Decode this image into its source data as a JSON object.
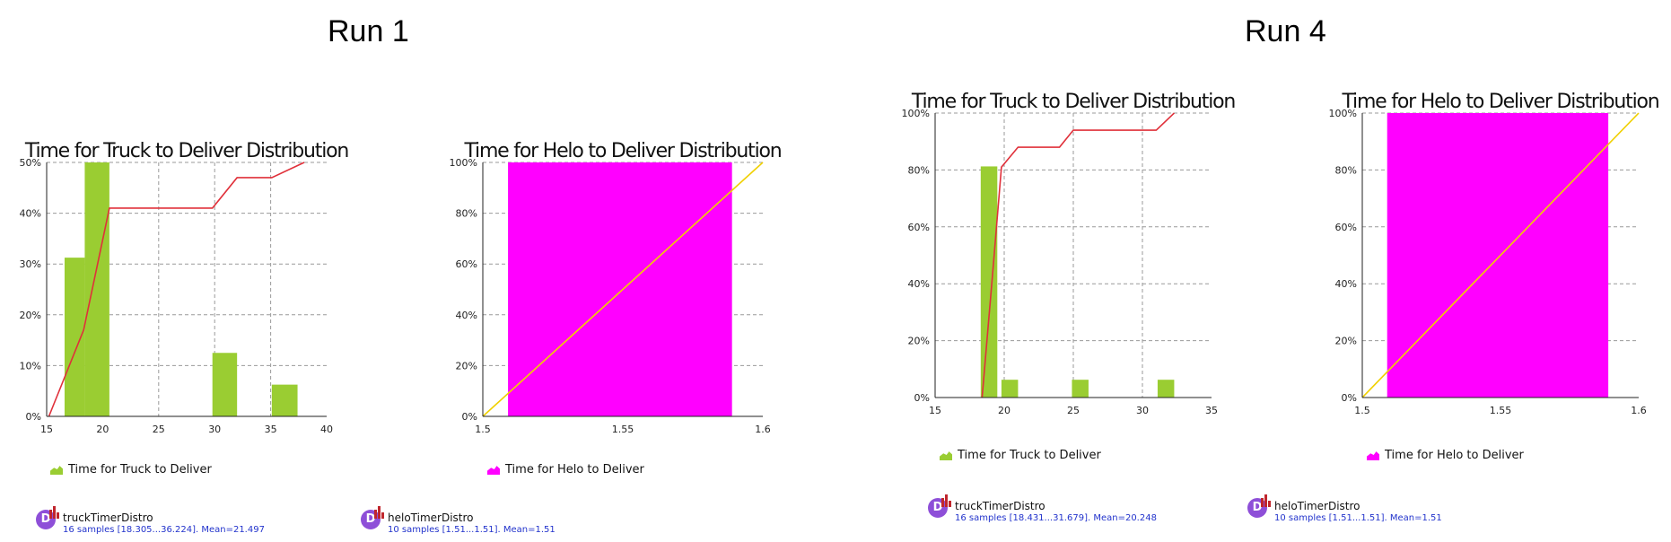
{
  "runs": [
    {
      "label": "Run 1"
    },
    {
      "label": "Run 4"
    }
  ],
  "colors": {
    "bar_green": "#9acd32",
    "bar_magenta": "#ff00ff",
    "cdf_red": "#e0303a",
    "cdf_yellow": "#f0d000",
    "grid": "#9a9a9a",
    "stat_text": "#2233cc"
  },
  "chart_data": [
    {
      "type": "bar",
      "title": "Time for Truck to Deliver Distribution",
      "xlim": [
        15,
        40
      ],
      "ylim": [
        0,
        50
      ],
      "xticks": [
        "15",
        "20",
        "25",
        "30",
        "35",
        "40"
      ],
      "yticks": [
        "0%",
        "10%",
        "20%",
        "30%",
        "40%",
        "50%"
      ],
      "bars": [
        {
          "x0": 16.6,
          "x1": 18.4,
          "value": 31.25
        },
        {
          "x0": 18.4,
          "x1": 20.6,
          "value": 50
        },
        {
          "x0": 29.8,
          "x1": 32.0,
          "value": 12.5
        },
        {
          "x0": 35.1,
          "x1": 37.4,
          "value": 6.25
        }
      ],
      "cdf": [
        [
          15.2,
          0
        ],
        [
          18.3,
          17
        ],
        [
          20.6,
          41
        ],
        [
          29.8,
          41
        ],
        [
          32.0,
          47
        ],
        [
          35.1,
          47
        ],
        [
          38.0,
          50
        ]
      ],
      "cdf_color": "cdf_red",
      "bar_color": "bar_green",
      "legend": "Time for Truck to Deliver",
      "stat_name": "truckTimerDistro",
      "stat_detail": "16 samples [18.305...36.224]. Mean=21.497"
    },
    {
      "type": "bar",
      "title": "Time for Helo to Deliver Distribution",
      "xlim": [
        1.5,
        1.6
      ],
      "ylim": [
        0,
        100
      ],
      "xticks": [
        "1.5",
        "1.55",
        "1.6"
      ],
      "yticks": [
        "0%",
        "20%",
        "40%",
        "60%",
        "80%",
        "100%"
      ],
      "bars": [
        {
          "x0": 1.509,
          "x1": 1.589,
          "value": 100
        }
      ],
      "cdf": [
        [
          1.5,
          0
        ],
        [
          1.6,
          100
        ]
      ],
      "cdf_color": "cdf_yellow",
      "bar_color": "bar_magenta",
      "legend": "Time for Helo to Deliver",
      "stat_name": "heloTimerDistro",
      "stat_detail": "10 samples [1.51...1.51]. Mean=1.51"
    },
    {
      "type": "bar",
      "title": "Time for Truck to Deliver Distribution",
      "xlim": [
        15,
        35
      ],
      "ylim": [
        0,
        100
      ],
      "xticks": [
        "15",
        "20",
        "25",
        "30",
        "35"
      ],
      "yticks": [
        "0%",
        "20%",
        "40%",
        "60%",
        "80%",
        "100%"
      ],
      "bars": [
        {
          "x0": 18.3,
          "x1": 19.5,
          "value": 81.25
        },
        {
          "x0": 19.8,
          "x1": 21.0,
          "value": 6.25
        },
        {
          "x0": 24.9,
          "x1": 26.1,
          "value": 6.25
        },
        {
          "x0": 31.1,
          "x1": 32.3,
          "value": 6.25
        }
      ],
      "cdf": [
        [
          18.4,
          0
        ],
        [
          19.1,
          40
        ],
        [
          19.8,
          81
        ],
        [
          21.0,
          88
        ],
        [
          24.0,
          88
        ],
        [
          25.0,
          94
        ],
        [
          31.0,
          94
        ],
        [
          32.3,
          100
        ]
      ],
      "cdf_color": "cdf_red",
      "bar_color": "bar_green",
      "legend": "Time for Truck to Deliver",
      "stat_name": "truckTimerDistro",
      "stat_detail": "16 samples [18.431...31.679]. Mean=20.248"
    },
    {
      "type": "bar",
      "title": "Time for Helo to Deliver Distribution",
      "xlim": [
        1.5,
        1.6
      ],
      "ylim": [
        0,
        100
      ],
      "xticks": [
        "1.5",
        "1.55",
        "1.6"
      ],
      "yticks": [
        "0%",
        "20%",
        "40%",
        "60%",
        "80%",
        "100%"
      ],
      "bars": [
        {
          "x0": 1.509,
          "x1": 1.589,
          "value": 100
        }
      ],
      "cdf": [
        [
          1.5,
          0
        ],
        [
          1.6,
          100
        ]
      ],
      "cdf_color": "cdf_yellow",
      "bar_color": "bar_magenta",
      "legend": "Time for Helo to Deliver",
      "stat_name": "heloTimerDistro",
      "stat_detail": "10 samples [1.51...1.51]. Mean=1.51"
    }
  ]
}
